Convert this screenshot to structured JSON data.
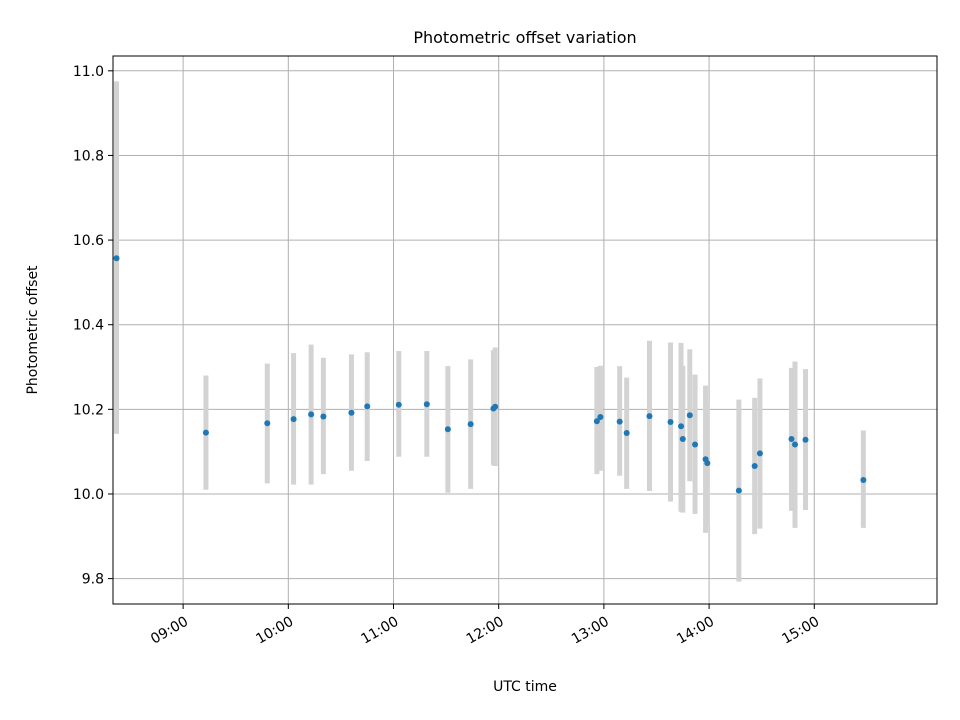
{
  "chart_data": {
    "type": "scatter",
    "title": "Photometric offset variation",
    "xlabel": "UTC time",
    "ylabel": "Photometric offset",
    "xlim": [
      "08:20",
      "16:10"
    ],
    "ylim": [
      9.74,
      11.035
    ],
    "grid": true,
    "x_ticks": [
      "09:00",
      "10:00",
      "11:00",
      "12:00",
      "13:00",
      "14:00",
      "15:00"
    ],
    "y_ticks": [
      9.8,
      10.0,
      10.2,
      10.4,
      10.6,
      10.8,
      11.0
    ],
    "y_tick_labels": [
      "9.8",
      "10.0",
      "10.2",
      "10.4",
      "10.6",
      "10.8",
      "11.0"
    ],
    "colors": {
      "point": "#1f77b4",
      "errorbar": "#d3d3d3",
      "grid": "#b0b0b0"
    },
    "points": [
      {
        "x": "08:22",
        "y": 10.557,
        "lo": 10.142,
        "hi": 10.975
      },
      {
        "x": "09:13",
        "y": 10.145,
        "lo": 10.01,
        "hi": 10.28
      },
      {
        "x": "09:48",
        "y": 10.167,
        "lo": 10.025,
        "hi": 10.308
      },
      {
        "x": "10:03",
        "y": 10.177,
        "lo": 10.022,
        "hi": 10.333
      },
      {
        "x": "10:13",
        "y": 10.188,
        "lo": 10.022,
        "hi": 10.353
      },
      {
        "x": "10:20",
        "y": 10.183,
        "lo": 10.047,
        "hi": 10.322
      },
      {
        "x": "10:36",
        "y": 10.192,
        "lo": 10.055,
        "hi": 10.33
      },
      {
        "x": "10:45",
        "y": 10.207,
        "lo": 10.078,
        "hi": 10.335
      },
      {
        "x": "11:03",
        "y": 10.211,
        "lo": 10.088,
        "hi": 10.338
      },
      {
        "x": "11:19",
        "y": 10.212,
        "lo": 10.088,
        "hi": 10.338
      },
      {
        "x": "11:31",
        "y": 10.153,
        "lo": 10.003,
        "hi": 10.302
      },
      {
        "x": "11:44",
        "y": 10.165,
        "lo": 10.012,
        "hi": 10.318
      },
      {
        "x": "11:57",
        "y": 10.202,
        "lo": 10.068,
        "hi": 10.34
      },
      {
        "x": "11:58",
        "y": 10.206,
        "lo": 10.066,
        "hi": 10.346
      },
      {
        "x": "12:56",
        "y": 10.172,
        "lo": 10.047,
        "hi": 10.3
      },
      {
        "x": "12:58",
        "y": 10.182,
        "lo": 10.055,
        "hi": 10.303
      },
      {
        "x": "13:09",
        "y": 10.171,
        "lo": 10.043,
        "hi": 10.302
      },
      {
        "x": "13:13",
        "y": 10.144,
        "lo": 10.012,
        "hi": 10.275
      },
      {
        "x": "13:26",
        "y": 10.184,
        "lo": 10.007,
        "hi": 10.362
      },
      {
        "x": "13:38",
        "y": 10.17,
        "lo": 9.982,
        "hi": 10.358
      },
      {
        "x": "13:44",
        "y": 10.16,
        "lo": 9.958,
        "hi": 10.357
      },
      {
        "x": "13:45",
        "y": 10.13,
        "lo": 9.956,
        "hi": 10.303
      },
      {
        "x": "13:49",
        "y": 10.186,
        "lo": 10.03,
        "hi": 10.342
      },
      {
        "x": "13:52",
        "y": 10.117,
        "lo": 9.953,
        "hi": 10.282
      },
      {
        "x": "13:58",
        "y": 10.082,
        "lo": 9.908,
        "hi": 10.256
      },
      {
        "x": "13:59",
        "y": 10.073,
        "lo": 9.932,
        "hi": 10.214
      },
      {
        "x": "14:17",
        "y": 10.008,
        "lo": 9.793,
        "hi": 10.223
      },
      {
        "x": "14:26",
        "y": 10.066,
        "lo": 9.905,
        "hi": 10.227
      },
      {
        "x": "14:29",
        "y": 10.096,
        "lo": 9.918,
        "hi": 10.273
      },
      {
        "x": "14:47",
        "y": 10.13,
        "lo": 9.96,
        "hi": 10.298
      },
      {
        "x": "14:49",
        "y": 10.117,
        "lo": 9.92,
        "hi": 10.313
      },
      {
        "x": "14:55",
        "y": 10.128,
        "lo": 9.962,
        "hi": 10.295
      },
      {
        "x": "15:28",
        "y": 10.033,
        "lo": 9.92,
        "hi": 10.15
      }
    ]
  }
}
